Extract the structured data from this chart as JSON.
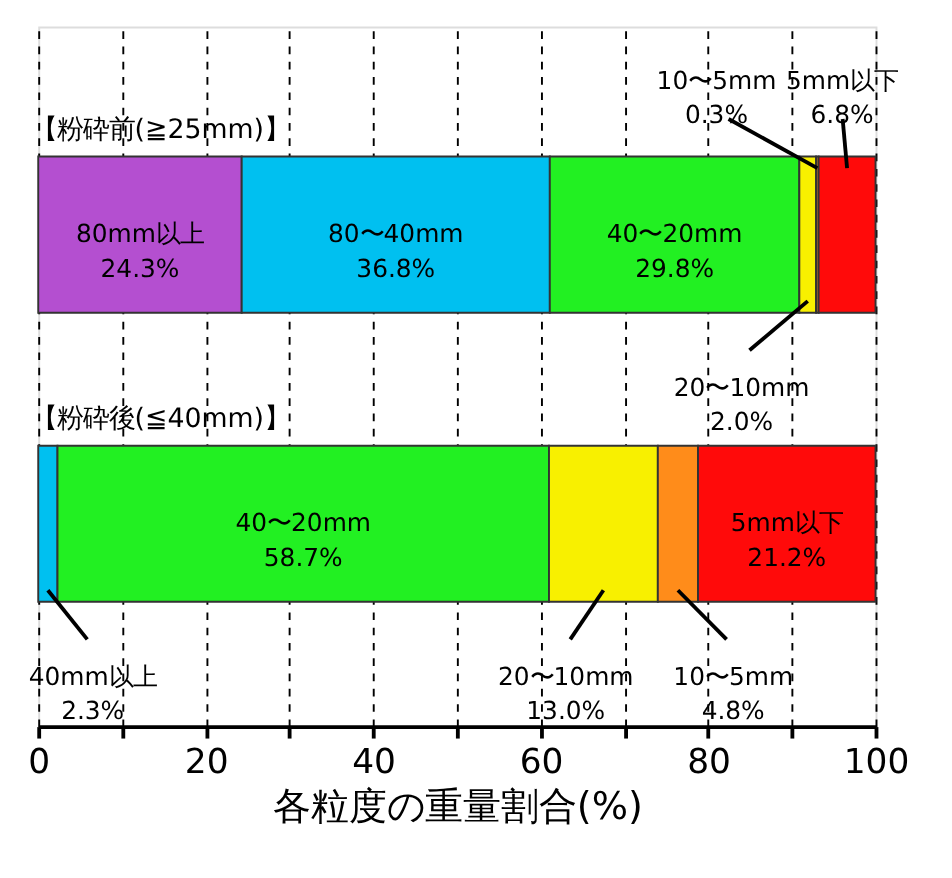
{
  "chart_data": {
    "type": "bar",
    "orientation": "horizontal",
    "stacked": true,
    "categories": [
      "【粉砕前(≧25mm)】",
      "【粉砕後(≦40mm)】"
    ],
    "series": [
      {
        "color": "#b44fd0",
        "values": [
          24.3,
          null
        ],
        "value_labels": [
          "80mm以上\n24.3%",
          null
        ]
      },
      {
        "color": "#00c0f0",
        "values": [
          36.8,
          2.3
        ],
        "value_labels": [
          "80〜40mm\n36.8%",
          "40mm以上\n2.3%"
        ]
      },
      {
        "color": "#22f022",
        "values": [
          29.8,
          58.7
        ],
        "value_labels": [
          "40〜20mm\n29.8%",
          "40〜20mm\n58.7%"
        ]
      },
      {
        "color": "#f8f000",
        "values": [
          2.0,
          13.0
        ],
        "value_labels": [
          "20〜10mm\n2.0%",
          "20〜10mm\n13.0%"
        ]
      },
      {
        "color": "#ff8c1a",
        "values": [
          0.3,
          4.8
        ],
        "value_labels": [
          "10〜5mm\n0.3%",
          "10〜5mm\n4.8%"
        ]
      },
      {
        "color": "#ff0a0a",
        "values": [
          6.8,
          21.2
        ],
        "value_labels": [
          "5mm以下\n6.8%",
          "5mm以下\n21.2%"
        ]
      }
    ],
    "xlabel": "各粒度の重量割合(%)",
    "xlim": [
      0,
      100
    ],
    "xticks": [
      0,
      {
        "value": 10,
        "label": null
      },
      20,
      {
        "value": 30,
        "label": null
      },
      40,
      {
        "value": 50,
        "label": null
      },
      60,
      {
        "value": 70,
        "label": null
      },
      80,
      {
        "value": 90,
        "label": null
      },
      100
    ],
    "grid": "x"
  }
}
